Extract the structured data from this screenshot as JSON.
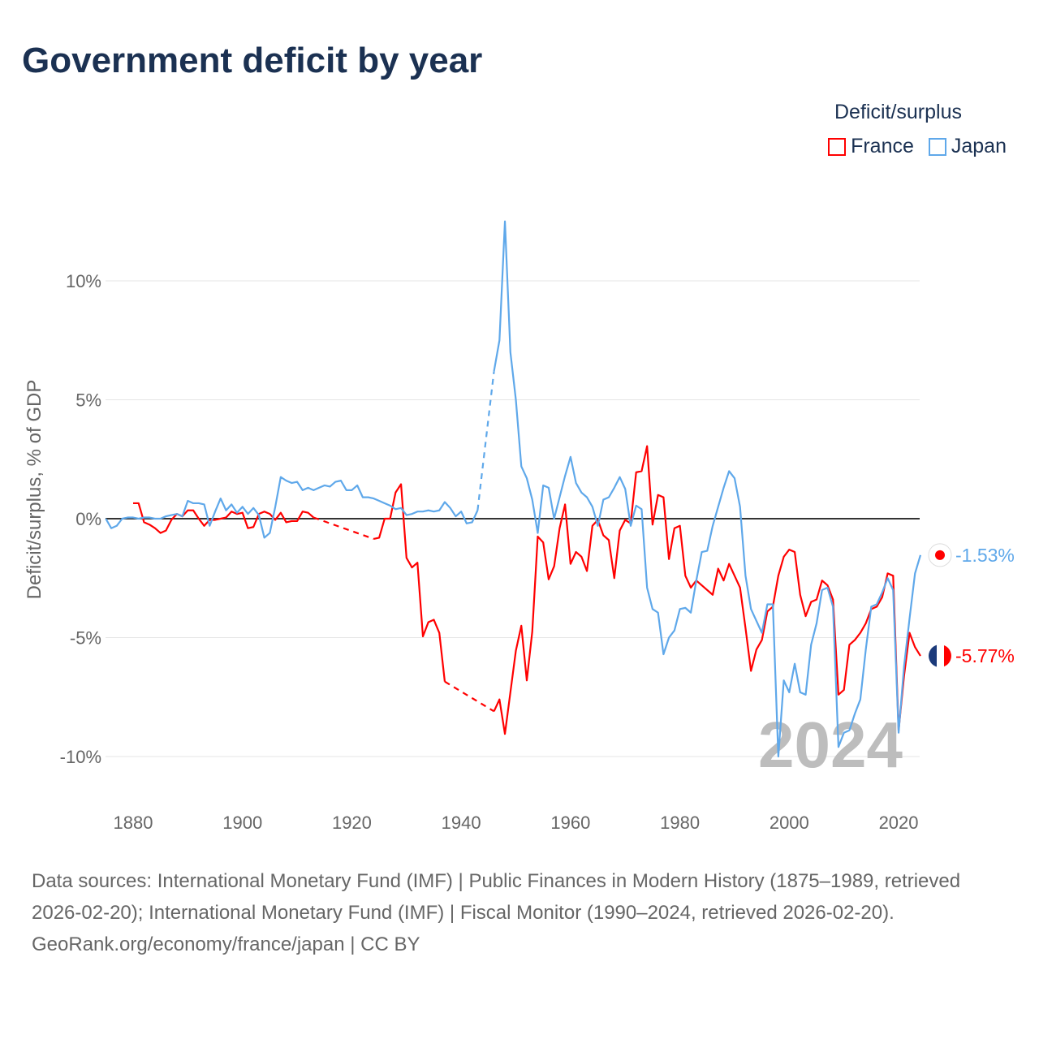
{
  "title": "Government deficit by year",
  "legend": {
    "title": "Deficit/surplus",
    "items": [
      {
        "label": "France",
        "color": "#ff0000"
      },
      {
        "label": "Japan",
        "color": "#5fa8ea"
      }
    ]
  },
  "watermark_year": "2024",
  "end_labels": {
    "france": "-5.77%",
    "japan": "-1.53%"
  },
  "footer": {
    "sources": "Data sources: International Monetary Fund (IMF) | Public Finances in Modern History (1875–1989, retrieved 2026-02-20); International Monetary Fund (IMF) | Fiscal Monitor (1990–2024, retrieved 2026-02-20).",
    "link": "GeoRank.org/economy/france/japan",
    "license": " | CC BY"
  },
  "chart_data": {
    "type": "line",
    "title": "Government deficit by year",
    "xlabel": "",
    "ylabel": "Deficit/surplus, % of GDP",
    "xlim": [
      1875,
      2024
    ],
    "ylim": [
      -11.5,
      12.5
    ],
    "yticks": [
      10,
      5,
      0,
      -5,
      -10
    ],
    "ytick_labels": [
      "10%",
      "5%",
      "0%",
      "-5%",
      "-10%"
    ],
    "xticks": [
      1880,
      1900,
      1920,
      1940,
      1960,
      1980,
      2000,
      2020
    ],
    "xtick_labels": [
      "1880",
      "1900",
      "1920",
      "1940",
      "1960",
      "1980",
      "2000",
      "2020"
    ],
    "grid": true,
    "legend_position": "top-right",
    "series": [
      {
        "name": "France",
        "color": "#ff0000",
        "points": [
          [
            1880,
            0.65
          ],
          [
            1881,
            0.65
          ],
          [
            1882,
            -0.15
          ],
          [
            1883,
            -0.25
          ],
          [
            1884,
            -0.4
          ],
          [
            1885,
            -0.6
          ],
          [
            1886,
            -0.5
          ],
          [
            1887,
            -0.05
          ],
          [
            1888,
            0.2
          ],
          [
            1889,
            0.1
          ],
          [
            1890,
            0.35
          ],
          [
            1891,
            0.35
          ],
          [
            1892,
            0.0
          ],
          [
            1893,
            -0.3
          ],
          [
            1894,
            -0.05
          ],
          [
            1895,
            -0.05
          ],
          [
            1896,
            0.0
          ],
          [
            1897,
            0.05
          ],
          [
            1898,
            0.3
          ],
          [
            1899,
            0.2
          ],
          [
            1900,
            0.25
          ],
          [
            1901,
            -0.4
          ],
          [
            1902,
            -0.35
          ],
          [
            1903,
            0.2
          ],
          [
            1904,
            0.3
          ],
          [
            1905,
            0.2
          ],
          [
            1906,
            -0.05
          ],
          [
            1907,
            0.25
          ],
          [
            1908,
            -0.15
          ],
          [
            1909,
            -0.1
          ],
          [
            1910,
            -0.1
          ],
          [
            1911,
            0.3
          ],
          [
            1912,
            0.25
          ],
          [
            1913,
            0.05
          ],
          [
            1924,
            -0.85
          ],
          [
            1925,
            -0.8
          ],
          [
            1926,
            0.0
          ],
          [
            1927,
            0.0
          ],
          [
            1928,
            1.1
          ],
          [
            1929,
            1.45
          ],
          [
            1930,
            -1.65
          ],
          [
            1931,
            -2.05
          ],
          [
            1932,
            -1.85
          ],
          [
            1933,
            -4.95
          ],
          [
            1934,
            -4.35
          ],
          [
            1935,
            -4.25
          ],
          [
            1936,
            -4.8
          ],
          [
            1937,
            -6.85
          ],
          [
            1946,
            -8.1
          ],
          [
            1947,
            -7.6
          ],
          [
            1948,
            -9.05
          ],
          [
            1949,
            -7.3
          ],
          [
            1950,
            -5.55
          ],
          [
            1951,
            -4.5
          ],
          [
            1952,
            -6.8
          ],
          [
            1953,
            -4.75
          ],
          [
            1954,
            -0.75
          ],
          [
            1955,
            -1.0
          ],
          [
            1956,
            -2.55
          ],
          [
            1957,
            -2.0
          ],
          [
            1958,
            -0.4
          ],
          [
            1959,
            0.6
          ],
          [
            1960,
            -1.9
          ],
          [
            1961,
            -1.4
          ],
          [
            1962,
            -1.6
          ],
          [
            1963,
            -2.2
          ],
          [
            1964,
            -0.3
          ],
          [
            1965,
            -0.05
          ],
          [
            1966,
            -0.7
          ],
          [
            1967,
            -0.9
          ],
          [
            1968,
            -2.5
          ],
          [
            1969,
            -0.5
          ],
          [
            1970,
            -0.05
          ],
          [
            1971,
            -0.2
          ],
          [
            1972,
            1.95
          ],
          [
            1973,
            2.0
          ],
          [
            1974,
            3.05
          ],
          [
            1975,
            -0.25
          ],
          [
            1976,
            1.0
          ],
          [
            1977,
            0.9
          ],
          [
            1978,
            -1.7
          ],
          [
            1979,
            -0.4
          ],
          [
            1980,
            -0.3
          ],
          [
            1981,
            -2.4
          ],
          [
            1982,
            -2.9
          ],
          [
            1983,
            -2.6
          ],
          [
            1984,
            -2.8
          ],
          [
            1985,
            -3.0
          ],
          [
            1986,
            -3.2
          ],
          [
            1987,
            -2.1
          ],
          [
            1988,
            -2.6
          ],
          [
            1989,
            -1.9
          ],
          [
            1990,
            -2.4
          ],
          [
            1991,
            -2.9
          ],
          [
            1992,
            -4.6
          ],
          [
            1993,
            -6.4
          ],
          [
            1994,
            -5.5
          ],
          [
            1995,
            -5.1
          ],
          [
            1996,
            -3.9
          ],
          [
            1997,
            -3.7
          ],
          [
            1998,
            -2.4
          ],
          [
            1999,
            -1.6
          ],
          [
            2000,
            -1.3
          ],
          [
            2001,
            -1.4
          ],
          [
            2002,
            -3.2
          ],
          [
            2003,
            -4.1
          ],
          [
            2004,
            -3.5
          ],
          [
            2005,
            -3.4
          ],
          [
            2006,
            -2.6
          ],
          [
            2007,
            -2.8
          ],
          [
            2008,
            -3.4
          ],
          [
            2009,
            -7.4
          ],
          [
            2010,
            -7.2
          ],
          [
            2011,
            -5.3
          ],
          [
            2012,
            -5.1
          ],
          [
            2013,
            -4.8
          ],
          [
            2014,
            -4.4
          ],
          [
            2015,
            -3.8
          ],
          [
            2016,
            -3.7
          ],
          [
            2017,
            -3.3
          ],
          [
            2018,
            -2.3
          ],
          [
            2019,
            -2.4
          ],
          [
            2020,
            -8.9
          ],
          [
            2021,
            -6.6
          ],
          [
            2022,
            -4.8
          ],
          [
            2023,
            -5.4
          ],
          [
            2024,
            -5.77
          ]
        ]
      },
      {
        "name": "Japan",
        "color": "#5fa8ea",
        "points": [
          [
            1875,
            0.0
          ],
          [
            1876,
            -0.4
          ],
          [
            1877,
            -0.3
          ],
          [
            1878,
            0.0
          ],
          [
            1879,
            0.05
          ],
          [
            1880,
            0.05
          ],
          [
            1881,
            0.0
          ],
          [
            1882,
            0.05
          ],
          [
            1883,
            0.05
          ],
          [
            1884,
            0.0
          ],
          [
            1885,
            0.0
          ],
          [
            1886,
            0.1
          ],
          [
            1887,
            0.15
          ],
          [
            1888,
            0.2
          ],
          [
            1889,
            0.1
          ],
          [
            1890,
            0.75
          ],
          [
            1891,
            0.65
          ],
          [
            1892,
            0.65
          ],
          [
            1893,
            0.6
          ],
          [
            1894,
            -0.3
          ],
          [
            1895,
            0.3
          ],
          [
            1896,
            0.85
          ],
          [
            1897,
            0.35
          ],
          [
            1898,
            0.6
          ],
          [
            1899,
            0.25
          ],
          [
            1900,
            0.5
          ],
          [
            1901,
            0.2
          ],
          [
            1902,
            0.45
          ],
          [
            1903,
            0.15
          ],
          [
            1904,
            -0.8
          ],
          [
            1905,
            -0.6
          ],
          [
            1906,
            0.5
          ],
          [
            1907,
            1.75
          ],
          [
            1908,
            1.6
          ],
          [
            1909,
            1.5
          ],
          [
            1910,
            1.55
          ],
          [
            1911,
            1.2
          ],
          [
            1912,
            1.3
          ],
          [
            1913,
            1.2
          ],
          [
            1914,
            1.3
          ],
          [
            1915,
            1.4
          ],
          [
            1916,
            1.35
          ],
          [
            1917,
            1.55
          ],
          [
            1918,
            1.6
          ],
          [
            1919,
            1.2
          ],
          [
            1920,
            1.2
          ],
          [
            1921,
            1.4
          ],
          [
            1922,
            0.9
          ],
          [
            1923,
            0.9
          ],
          [
            1924,
            0.85
          ],
          [
            1925,
            0.75
          ],
          [
            1926,
            0.65
          ],
          [
            1927,
            0.55
          ],
          [
            1928,
            0.4
          ],
          [
            1929,
            0.45
          ],
          [
            1930,
            0.15
          ],
          [
            1931,
            0.2
          ],
          [
            1932,
            0.3
          ],
          [
            1933,
            0.3
          ],
          [
            1934,
            0.35
          ],
          [
            1935,
            0.3
          ],
          [
            1936,
            0.35
          ],
          [
            1937,
            0.7
          ],
          [
            1938,
            0.45
          ],
          [
            1939,
            0.1
          ],
          [
            1940,
            0.3
          ],
          [
            1941,
            -0.2
          ],
          [
            1942,
            -0.15
          ],
          [
            1943,
            0.35
          ],
          [
            1946,
            6.2
          ],
          [
            1947,
            7.5
          ],
          [
            1948,
            12.5
          ],
          [
            1949,
            7.0
          ],
          [
            1950,
            5.0
          ],
          [
            1951,
            2.2
          ],
          [
            1952,
            1.7
          ],
          [
            1953,
            0.8
          ],
          [
            1954,
            -0.6
          ],
          [
            1955,
            1.4
          ],
          [
            1956,
            1.3
          ],
          [
            1957,
            0.0
          ],
          [
            1958,
            0.9
          ],
          [
            1959,
            1.8
          ],
          [
            1960,
            2.6
          ],
          [
            1961,
            1.5
          ],
          [
            1962,
            1.1
          ],
          [
            1963,
            0.9
          ],
          [
            1964,
            0.5
          ],
          [
            1965,
            -0.3
          ],
          [
            1966,
            0.8
          ],
          [
            1967,
            0.9
          ],
          [
            1968,
            1.3
          ],
          [
            1969,
            1.75
          ],
          [
            1970,
            1.25
          ],
          [
            1971,
            -0.3
          ],
          [
            1972,
            0.55
          ],
          [
            1973,
            0.4
          ],
          [
            1974,
            -2.9
          ],
          [
            1975,
            -3.8
          ],
          [
            1976,
            -3.95
          ],
          [
            1977,
            -5.7
          ],
          [
            1978,
            -5.0
          ],
          [
            1979,
            -4.7
          ],
          [
            1980,
            -3.8
          ],
          [
            1981,
            -3.75
          ],
          [
            1982,
            -3.95
          ],
          [
            1983,
            -2.6
          ],
          [
            1984,
            -1.4
          ],
          [
            1985,
            -1.35
          ],
          [
            1986,
            -0.3
          ],
          [
            1987,
            0.5
          ],
          [
            1988,
            1.3
          ],
          [
            1989,
            2.0
          ],
          [
            1990,
            1.7
          ],
          [
            1991,
            0.5
          ],
          [
            1992,
            -2.4
          ],
          [
            1993,
            -3.8
          ],
          [
            1994,
            -4.3
          ],
          [
            1995,
            -4.8
          ],
          [
            1996,
            -3.6
          ],
          [
            1997,
            -3.6
          ],
          [
            1998,
            -10.0
          ],
          [
            1999,
            -6.8
          ],
          [
            2000,
            -7.3
          ],
          [
            2001,
            -6.1
          ],
          [
            2002,
            -7.3
          ],
          [
            2003,
            -7.4
          ],
          [
            2004,
            -5.3
          ],
          [
            2005,
            -4.4
          ],
          [
            2006,
            -3.0
          ],
          [
            2007,
            -2.9
          ],
          [
            2008,
            -3.7
          ],
          [
            2009,
            -9.6
          ],
          [
            2010,
            -9.0
          ],
          [
            2011,
            -8.9
          ],
          [
            2012,
            -8.2
          ],
          [
            2013,
            -7.6
          ],
          [
            2014,
            -5.5
          ],
          [
            2015,
            -3.7
          ],
          [
            2016,
            -3.6
          ],
          [
            2017,
            -3.1
          ],
          [
            2018,
            -2.5
          ],
          [
            2019,
            -3.0
          ],
          [
            2020,
            -9.0
          ],
          [
            2021,
            -6.2
          ],
          [
            2022,
            -4.2
          ],
          [
            2023,
            -2.3
          ],
          [
            2024,
            -1.53
          ]
        ]
      }
    ]
  }
}
